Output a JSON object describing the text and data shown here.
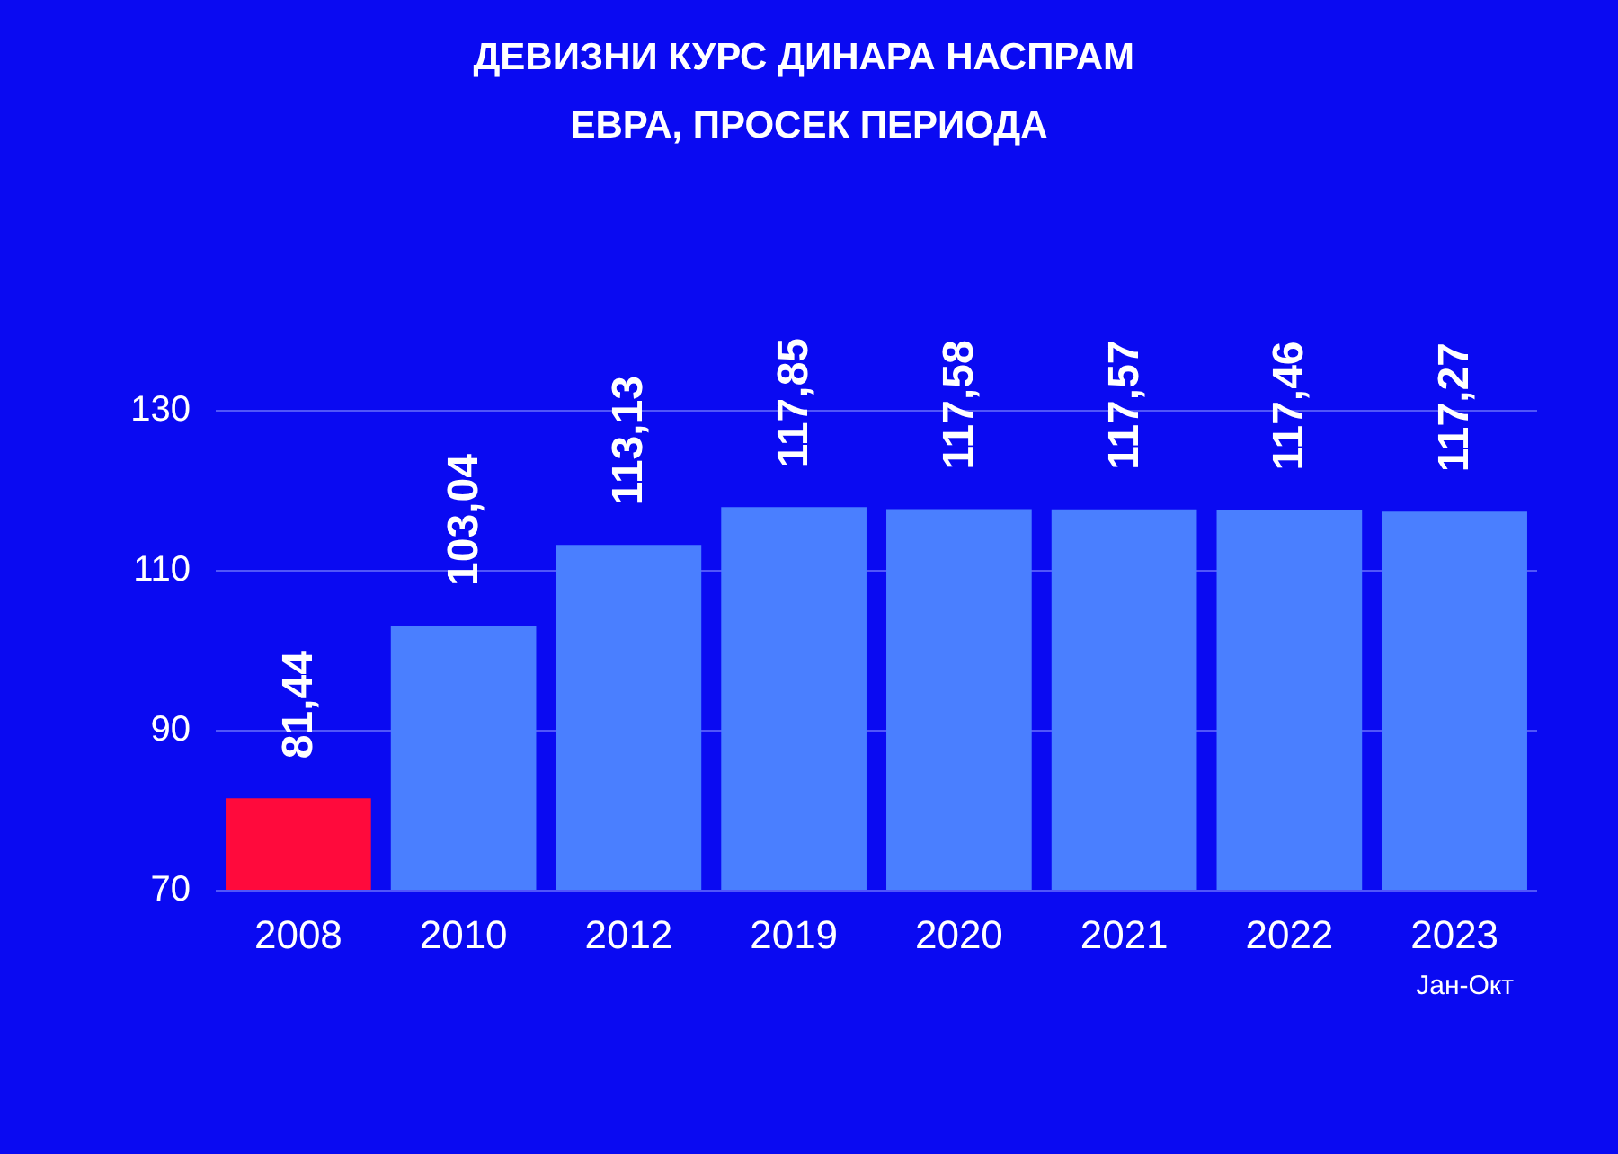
{
  "chart_data": {
    "type": "bar",
    "title": "ДЕВИЗНИ КУРС ДИНАРА НАСПРАМ ЕВРА, ПРОСЕК ПЕРИОДА",
    "categories": [
      "2008",
      "2010",
      "2012",
      "2019",
      "2020",
      "2021",
      "2022",
      "2023"
    ],
    "values": [
      81.44,
      103.04,
      113.13,
      117.85,
      117.58,
      117.57,
      117.46,
      117.27
    ],
    "colors": [
      "#ff0a3c",
      "#4a7fff",
      "#4a7fff",
      "#4a7fff",
      "#4a7fff",
      "#4a7fff",
      "#4a7fff",
      "#4a7fff"
    ],
    "value_labels": [
      "81,44",
      "103,04",
      "113,13",
      "117,85",
      "117,58",
      "117,57",
      "117,46",
      "117,27"
    ],
    "annotations": [
      "Јан-Окт"
    ],
    "ylim": [
      70,
      130
    ],
    "yticks": [
      70,
      90,
      110,
      130
    ],
    "grid": "y"
  }
}
